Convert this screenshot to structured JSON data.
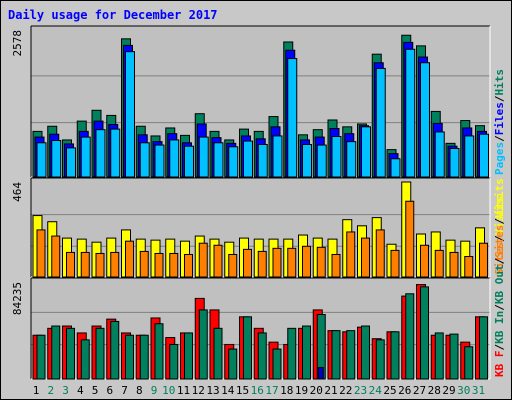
{
  "page": {
    "title": "Daily usage for December 2017"
  },
  "chart_data": [
    {
      "type": "bar",
      "title": "Daily usage for December 2017",
      "panel": "hits_files_pages",
      "categories": [
        "1",
        "2",
        "3",
        "4",
        "5",
        "6",
        "7",
        "8",
        "9",
        "10",
        "11",
        "12",
        "13",
        "14",
        "15",
        "16",
        "17",
        "18",
        "19",
        "20",
        "21",
        "22",
        "23",
        "24",
        "25",
        "26",
        "27",
        "28",
        "29",
        "30",
        "31"
      ],
      "ylim": [
        0,
        2578
      ],
      "max_label": "2578",
      "legend": [
        {
          "name": "Pages",
          "color": "#00c0ff"
        },
        {
          "name": "/",
          "color": "#000000"
        },
        {
          "name": "Files",
          "color": "#0000ff"
        },
        {
          "name": "/",
          "color": "#000000"
        },
        {
          "name": "Hits",
          "color": "#00805c"
        }
      ],
      "series": [
        {
          "name": "Hits",
          "color": "#00805c",
          "values": [
            800,
            890,
            650,
            980,
            1170,
            1080,
            2423,
            890,
            720,
            860,
            730,
            1110,
            800,
            650,
            840,
            800,
            1060,
            2368,
            740,
            830,
            1000,
            880,
            930,
            2154,
            480,
            2486,
            2300,
            1150,
            590,
            990,
            900
          ]
        },
        {
          "name": "Files",
          "color": "#0000ff",
          "values": [
            700,
            750,
            580,
            800,
            980,
            920,
            2308,
            740,
            620,
            760,
            600,
            930,
            690,
            590,
            720,
            670,
            880,
            2223,
            650,
            700,
            850,
            760,
            900,
            2004,
            410,
            2361,
            2104,
            940,
            540,
            860,
            800
          ]
        },
        {
          "name": "Pages",
          "color": "#00c0ff",
          "values": [
            600,
            640,
            510,
            700,
            830,
            840,
            2198,
            600,
            560,
            650,
            540,
            700,
            600,
            530,
            630,
            570,
            720,
            2077,
            570,
            560,
            710,
            620,
            880,
            1904,
            320,
            2240,
            2004,
            790,
            500,
            720,
            750
          ]
        }
      ]
    },
    {
      "type": "bar",
      "panel": "visits_sites",
      "categories": [
        "1",
        "2",
        "3",
        "4",
        "5",
        "6",
        "7",
        "8",
        "9",
        "10",
        "11",
        "12",
        "13",
        "14",
        "15",
        "16",
        "17",
        "18",
        "19",
        "20",
        "21",
        "22",
        "23",
        "24",
        "25",
        "26",
        "27",
        "28",
        "29",
        "30",
        "31"
      ],
      "ylim": [
        0,
        464
      ],
      "max_label": "464",
      "legend": [
        {
          "name": "Sites",
          "color": "#ff8000"
        },
        {
          "name": "/",
          "color": "#000000"
        },
        {
          "name": "Visits",
          "color": "#ffff00"
        }
      ],
      "series": [
        {
          "name": "Visits",
          "color": "#ffff00",
          "values": [
            300,
            270,
            190,
            185,
            170,
            190,
            230,
            185,
            180,
            185,
            175,
            200,
            185,
            170,
            190,
            185,
            185,
            185,
            205,
            190,
            185,
            280,
            250,
            290,
            160,
            464,
            210,
            220,
            180,
            175,
            240
          ]
        },
        {
          "name": "Sites",
          "color": "#ff8000",
          "values": [
            230,
            200,
            120,
            120,
            115,
            120,
            175,
            125,
            115,
            115,
            110,
            165,
            155,
            110,
            135,
            125,
            140,
            140,
            150,
            145,
            110,
            220,
            190,
            230,
            130,
            370,
            155,
            130,
            120,
            100,
            165
          ]
        }
      ]
    },
    {
      "type": "bar",
      "panel": "kbytes",
      "categories": [
        "1",
        "2",
        "3",
        "4",
        "5",
        "6",
        "7",
        "8",
        "9",
        "10",
        "11",
        "12",
        "13",
        "14",
        "15",
        "16",
        "17",
        "18",
        "19",
        "20",
        "21",
        "22",
        "23",
        "24",
        "25",
        "26",
        "27",
        "28",
        "29",
        "30",
        "31"
      ],
      "ylim": [
        0,
        84235
      ],
      "max_label": "84235",
      "legend": [
        {
          "name": "KB F",
          "color": "#ff0000"
        },
        {
          "name": "/",
          "color": "#000000"
        },
        {
          "name": "KB In",
          "color": "#00805c"
        },
        {
          "name": "/",
          "color": "#000000"
        },
        {
          "name": "KB Out",
          "color": "#00805c"
        },
        {
          "name": "/",
          "color": "#000000"
        },
        {
          "name": "Sites",
          "color": "#ff8000"
        },
        {
          "name": "/",
          "color": "#000000"
        },
        {
          "name": "Visits",
          "color": "#ffff00"
        }
      ],
      "series": [
        {
          "name": "KB F",
          "color": "#ff0000",
          "values": [
            38000,
            44000,
            46000,
            40000,
            46000,
            52000,
            40000,
            38000,
            53000,
            36000,
            40000,
            70000,
            60000,
            30000,
            54000,
            44000,
            32000,
            30000,
            44000,
            60000,
            42000,
            41000,
            45000,
            35000,
            41000,
            72000,
            82000,
            38000,
            38000,
            32000,
            54000
          ]
        },
        {
          "name": "KB Out",
          "color": "#00805c",
          "values": [
            38000,
            46000,
            44000,
            34000,
            44000,
            50000,
            38000,
            38000,
            48000,
            30000,
            40000,
            60000,
            44000,
            26000,
            54000,
            40000,
            26000,
            44000,
            46000,
            56000,
            42000,
            42000,
            46000,
            34000,
            41000,
            74000,
            80000,
            40000,
            39000,
            28000,
            54000
          ]
        },
        {
          "name": "KB In",
          "color": "#00805c",
          "values": [
            0,
            0,
            0,
            0,
            0,
            0,
            0,
            0,
            0,
            0,
            0,
            0,
            0,
            0,
            0,
            0,
            0,
            0,
            0,
            10000,
            0,
            0,
            0,
            0,
            0,
            0,
            0,
            0,
            0,
            0,
            0
          ]
        }
      ]
    }
  ],
  "x_axis": {
    "labels": [
      "1",
      "2",
      "3",
      "4",
      "5",
      "6",
      "7",
      "8",
      "9",
      "10",
      "11",
      "12",
      "13",
      "14",
      "15",
      "16",
      "17",
      "18",
      "19",
      "20",
      "21",
      "22",
      "23",
      "24",
      "25",
      "26",
      "27",
      "28",
      "29",
      "30",
      "31"
    ],
    "weekend_days": [
      2,
      3,
      9,
      10,
      16,
      17,
      23,
      24,
      30,
      31
    ],
    "weekday_color": "#000000",
    "weekend_color": "#00805c"
  }
}
